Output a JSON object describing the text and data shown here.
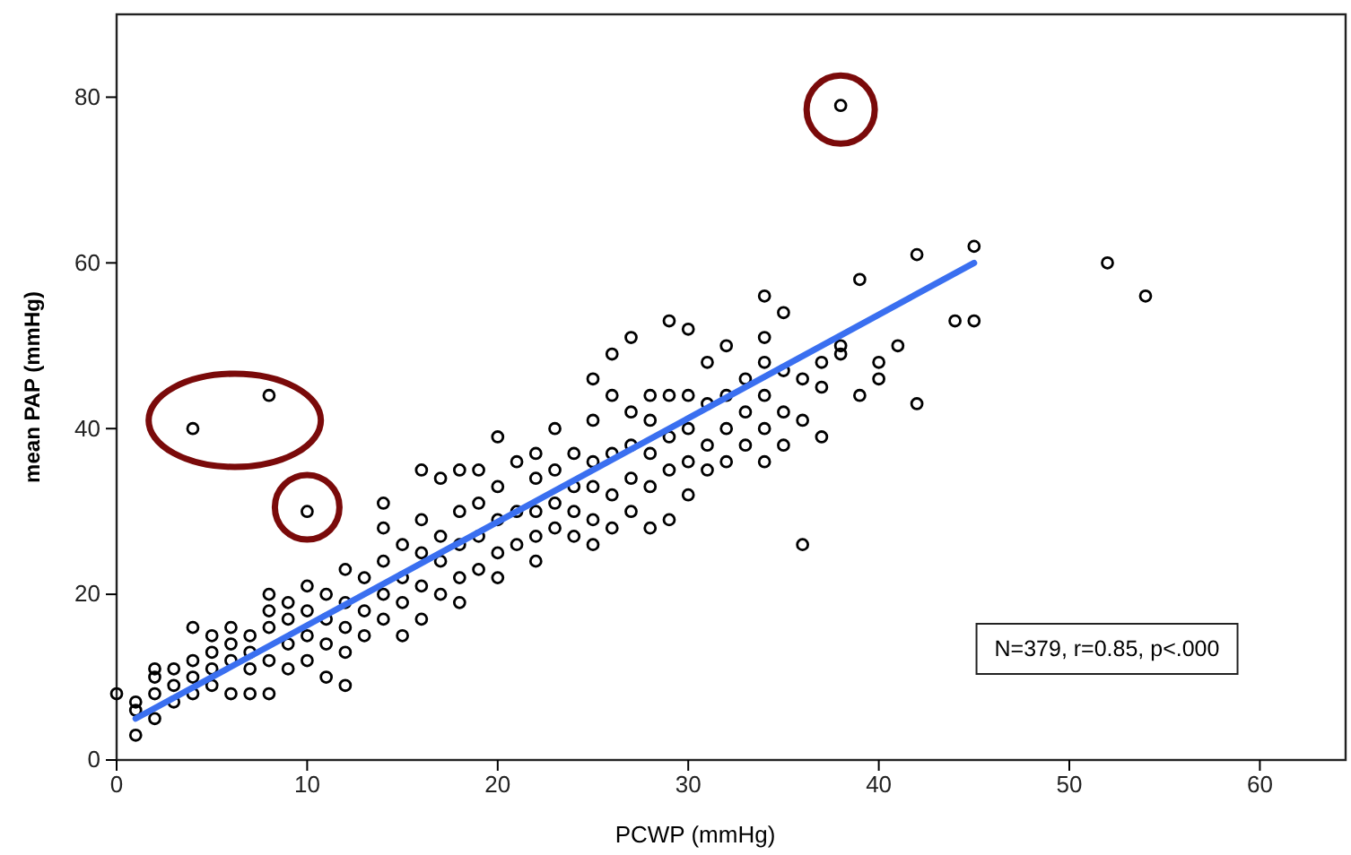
{
  "chart_data": {
    "type": "scatter",
    "xlabel": "PCWP (mmHg)",
    "ylabel": "mean PAP (mmHg)",
    "xlim": [
      0,
      64.5
    ],
    "ylim": [
      0,
      90
    ],
    "xticks": [
      0,
      10,
      20,
      30,
      40,
      50,
      60
    ],
    "yticks": [
      0,
      20,
      40,
      60,
      80
    ],
    "grid": false,
    "annotations": [
      "N=379, r=0.85, p<.000"
    ],
    "series": [
      {
        "marker": "circle",
        "color": "#000000",
        "x": [
          0,
          1,
          1,
          1,
          2,
          2,
          2,
          2,
          3,
          3,
          3,
          4,
          4,
          4,
          4,
          5,
          5,
          5,
          5,
          6,
          6,
          6,
          6,
          7,
          7,
          7,
          7,
          8,
          8,
          8,
          8,
          8,
          9,
          9,
          9,
          9,
          10,
          10,
          10,
          10,
          11,
          11,
          11,
          11,
          12,
          12,
          12,
          12,
          12,
          13,
          13,
          13,
          14,
          14,
          14,
          14,
          14,
          15,
          15,
          15,
          15,
          16,
          16,
          16,
          16,
          16,
          17,
          17,
          17,
          17,
          18,
          18,
          18,
          18,
          18,
          19,
          19,
          19,
          19,
          20,
          20,
          20,
          20,
          20,
          21,
          21,
          21,
          22,
          22,
          22,
          22,
          22,
          23,
          23,
          23,
          23,
          24,
          24,
          24,
          24,
          25,
          25,
          25,
          25,
          25,
          25,
          26,
          26,
          26,
          26,
          26,
          27,
          27,
          27,
          27,
          27,
          28,
          28,
          28,
          28,
          28,
          29,
          29,
          29,
          29,
          29,
          30,
          30,
          30,
          30,
          30,
          31,
          31,
          31,
          31,
          32,
          32,
          32,
          32,
          33,
          33,
          33,
          34,
          34,
          34,
          34,
          34,
          34,
          35,
          35,
          35,
          35,
          36,
          36,
          36,
          37,
          37,
          37,
          38,
          38,
          39,
          39,
          40,
          40,
          41,
          42,
          42,
          44,
          45,
          45,
          52,
          54,
          4,
          8,
          10,
          38
        ],
        "values": [
          8,
          3,
          6,
          7,
          5,
          8,
          10,
          11,
          7,
          9,
          11,
          8,
          10,
          12,
          16,
          9,
          11,
          13,
          15,
          8,
          12,
          14,
          16,
          8,
          11,
          13,
          15,
          8,
          12,
          16,
          18,
          20,
          11,
          14,
          17,
          19,
          12,
          15,
          18,
          21,
          10,
          14,
          17,
          20,
          9,
          13,
          16,
          19,
          23,
          15,
          18,
          22,
          17,
          20,
          24,
          28,
          31,
          15,
          19,
          22,
          26,
          17,
          21,
          25,
          29,
          35,
          20,
          24,
          27,
          34,
          19,
          22,
          26,
          30,
          35,
          23,
          27,
          31,
          35,
          22,
          25,
          29,
          33,
          39,
          26,
          30,
          36,
          24,
          27,
          30,
          34,
          37,
          28,
          31,
          35,
          40,
          27,
          30,
          33,
          37,
          26,
          29,
          33,
          36,
          41,
          46,
          28,
          32,
          37,
          44,
          49,
          30,
          34,
          38,
          42,
          51,
          28,
          33,
          37,
          41,
          44,
          29,
          35,
          39,
          44,
          53,
          32,
          36,
          40,
          44,
          52,
          35,
          38,
          43,
          48,
          36,
          40,
          44,
          50,
          38,
          42,
          46,
          36,
          40,
          44,
          48,
          51,
          56,
          38,
          42,
          47,
          54,
          26,
          41,
          46,
          39,
          45,
          48,
          49,
          50,
          44,
          58,
          46,
          48,
          50,
          43,
          61,
          53,
          53,
          62,
          60,
          56,
          40,
          44,
          30,
          79
        ]
      },
      {
        "type": "line",
        "marker": "none",
        "color": "#3a6ff0",
        "x": [
          1,
          45
        ],
        "values": [
          5,
          60
        ]
      }
    ]
  }
}
